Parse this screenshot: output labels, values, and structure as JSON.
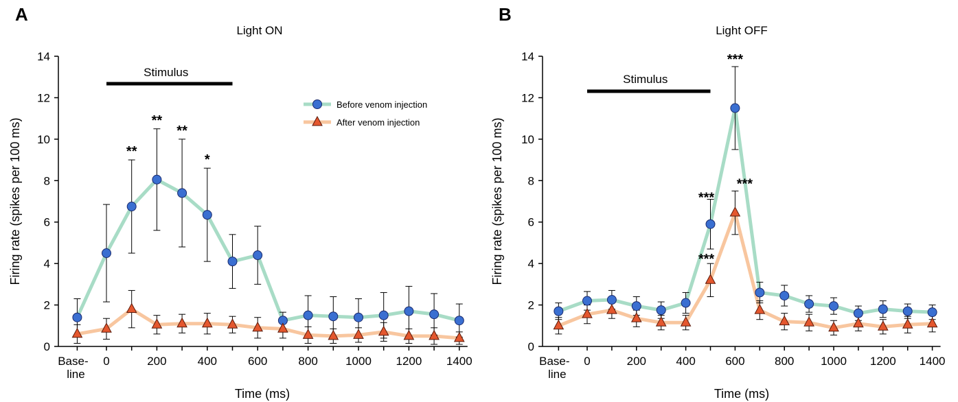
{
  "colors": {
    "before_line": "#a8dcc6",
    "before_marker": "#3a6fd1",
    "after_line": "#f8c69f",
    "after_marker": "#e4572e"
  },
  "chart_data": [
    {
      "panel_label": "A",
      "type": "line",
      "title": "Light ON",
      "xlabel": "Time (ms)",
      "ylabel": "Firing rate (spikes per 100 ms)",
      "ylim": [
        0,
        14
      ],
      "yticks": [
        "0",
        "2",
        "4",
        "6",
        "8",
        "10",
        "12",
        "14"
      ],
      "xticks": [
        "Base-\nline",
        "0",
        "200",
        "400",
        "600",
        "800",
        "1000",
        "1200",
        "1400"
      ],
      "stimulus": {
        "label": "Stimulus",
        "start_ms": 0,
        "end_ms": 500
      },
      "legend_position": "top-right",
      "x": [
        "baseline",
        0,
        100,
        200,
        300,
        400,
        500,
        600,
        700,
        800,
        900,
        1000,
        1100,
        1200,
        1300,
        1400
      ],
      "series": [
        {
          "name": "Before venom injection",
          "values": [
            1.4,
            4.5,
            6.75,
            8.05,
            7.4,
            6.35,
            4.1,
            4.4,
            1.25,
            1.5,
            1.45,
            1.4,
            1.5,
            1.7,
            1.55,
            1.25
          ],
          "errors": [
            0.9,
            2.35,
            2.25,
            2.45,
            2.6,
            2.25,
            1.3,
            1.4,
            0.4,
            0.95,
            0.95,
            0.9,
            1.1,
            1.2,
            1.0,
            0.8
          ]
        },
        {
          "name": "After venom injection",
          "values": [
            0.6,
            0.85,
            1.8,
            1.05,
            1.1,
            1.1,
            1.05,
            0.9,
            0.85,
            0.55,
            0.5,
            0.55,
            0.7,
            0.5,
            0.5,
            0.4
          ],
          "errors": [
            0.45,
            0.5,
            0.9,
            0.45,
            0.45,
            0.5,
            0.4,
            0.5,
            0.45,
            0.4,
            0.35,
            0.35,
            0.45,
            0.35,
            0.4,
            0.3
          ]
        }
      ],
      "significance": [
        {
          "x": 100,
          "label": "**"
        },
        {
          "x": 200,
          "label": "**"
        },
        {
          "x": 300,
          "label": "**"
        },
        {
          "x": 400,
          "label": "*"
        }
      ]
    },
    {
      "panel_label": "B",
      "type": "line",
      "title": "Light OFF",
      "xlabel": "Time (ms)",
      "ylabel": "Firing rate (spikes per 100 ms)",
      "ylim": [
        0,
        14
      ],
      "yticks": [
        "0",
        "2",
        "4",
        "6",
        "8",
        "10",
        "12",
        "14"
      ],
      "xticks": [
        "Base-\nline",
        "0",
        "200",
        "400",
        "600",
        "800",
        "1000",
        "1200",
        "1400"
      ],
      "stimulus": {
        "label": "Stimulus",
        "start_ms": 0,
        "end_ms": 500
      },
      "x": [
        "baseline",
        0,
        100,
        200,
        300,
        400,
        500,
        600,
        700,
        800,
        900,
        1000,
        1100,
        1200,
        1300,
        1400
      ],
      "series": [
        {
          "name": "Before venom injection",
          "values": [
            1.7,
            2.2,
            2.25,
            1.95,
            1.75,
            2.1,
            5.9,
            11.5,
            2.6,
            2.45,
            2.05,
            1.95,
            1.6,
            1.8,
            1.7,
            1.65
          ],
          "errors": [
            0.4,
            0.45,
            0.45,
            0.45,
            0.4,
            0.5,
            1.2,
            2.0,
            0.5,
            0.5,
            0.4,
            0.4,
            0.35,
            0.4,
            0.35,
            0.35
          ]
        },
        {
          "name": "After venom injection",
          "values": [
            1.0,
            1.55,
            1.75,
            1.35,
            1.15,
            1.15,
            3.2,
            6.45,
            1.75,
            1.2,
            1.15,
            0.9,
            1.1,
            0.95,
            1.05,
            1.1
          ],
          "errors": [
            0.4,
            0.45,
            0.4,
            0.4,
            0.35,
            0.35,
            0.8,
            1.05,
            0.45,
            0.4,
            0.4,
            0.35,
            0.35,
            0.35,
            0.4,
            0.4
          ]
        }
      ],
      "significance": [
        {
          "x": 500,
          "series": "Before venom injection",
          "label": "***"
        },
        {
          "x": 600,
          "series": "Before venom injection",
          "label": "***"
        },
        {
          "x": 500,
          "series": "After venom injection",
          "label": "***"
        },
        {
          "x": 600,
          "series": "After venom injection",
          "label": "***"
        }
      ]
    }
  ]
}
